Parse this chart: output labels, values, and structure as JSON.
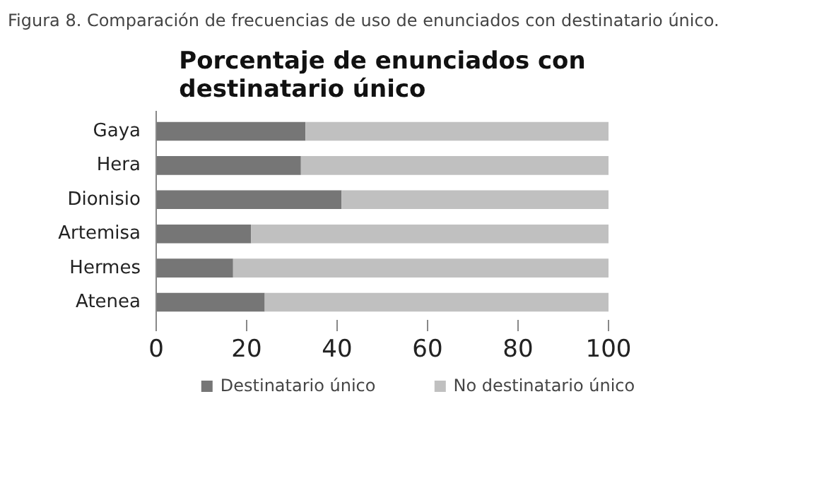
{
  "chart_data": {
    "type": "bar",
    "orientation": "horizontal",
    "stacked": true,
    "title": "Porcentaje de enunciados con\ndestinatario único",
    "annotations": [
      "Figura 8. Comparación de frecuencias de uso de enunciados con destinatario único."
    ],
    "categories": [
      "Gaya",
      "Hera",
      "Dionisio",
      "Artemisa",
      "Hermes",
      "Atenea"
    ],
    "series": [
      {
        "name": "Destinatario único",
        "color": "#767676",
        "values": [
          33,
          32,
          41,
          21,
          17,
          24
        ]
      },
      {
        "name": "No destinatario único",
        "color": "#c0c0c0",
        "values": [
          67,
          68,
          59,
          79,
          83,
          76
        ]
      }
    ],
    "xlim": [
      0,
      100
    ],
    "xticks": [
      0,
      20,
      40,
      60,
      80,
      100
    ],
    "grid": false,
    "legend": "bottom"
  }
}
